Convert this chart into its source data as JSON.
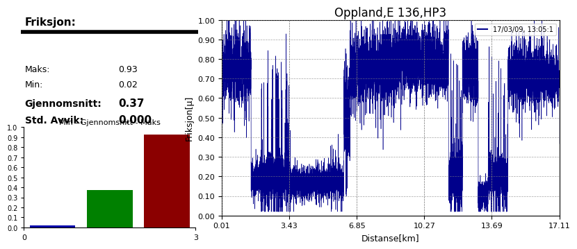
{
  "title_left": "Friksjon:",
  "maks_label": "Maks:",
  "maks_value": "0.93",
  "min_label": "Min:",
  "min_value": "0.02",
  "gjennomsnitt_label": "Gjennomsnitt:",
  "gjennomsnitt_value": "0.37",
  "std_label": "Std. Avvik:",
  "std_value": "0.000",
  "bar_title": "Min - Gjennomsnitt - Maks",
  "bar_values": [
    0.02,
    0.37,
    0.93
  ],
  "bar_colors": [
    "#0000aa",
    "#008000",
    "#8b0000"
  ],
  "bar_positions": [
    0.5,
    1.5,
    2.5
  ],
  "bar_xlim": [
    0,
    3
  ],
  "bar_ylim": [
    0,
    1.0
  ],
  "bar_yticks": [
    0,
    0.1,
    0.2,
    0.3,
    0.4,
    0.5,
    0.6,
    0.7,
    0.8,
    0.9,
    1.0
  ],
  "chart_title": "Oppland,E 136,HP3",
  "legend_label": "17/03/09, 13:05:1",
  "legend_line_color": "#00008b",
  "xlabel": "Distanse[km]",
  "ylabel": "Friksjon[µ]",
  "xlim": [
    0.01,
    17.11
  ],
  "ylim": [
    0,
    1.0
  ],
  "yticks": [
    0,
    0.1,
    0.2,
    0.3,
    0.4,
    0.5,
    0.6,
    0.7,
    0.8,
    0.9,
    1.0
  ],
  "xticks": [
    0.01,
    3.43,
    6.85,
    10.27,
    13.69,
    17.11
  ],
  "line_color": "#00008b",
  "line_color2": "#aaaacc",
  "background_color": "#ffffff"
}
